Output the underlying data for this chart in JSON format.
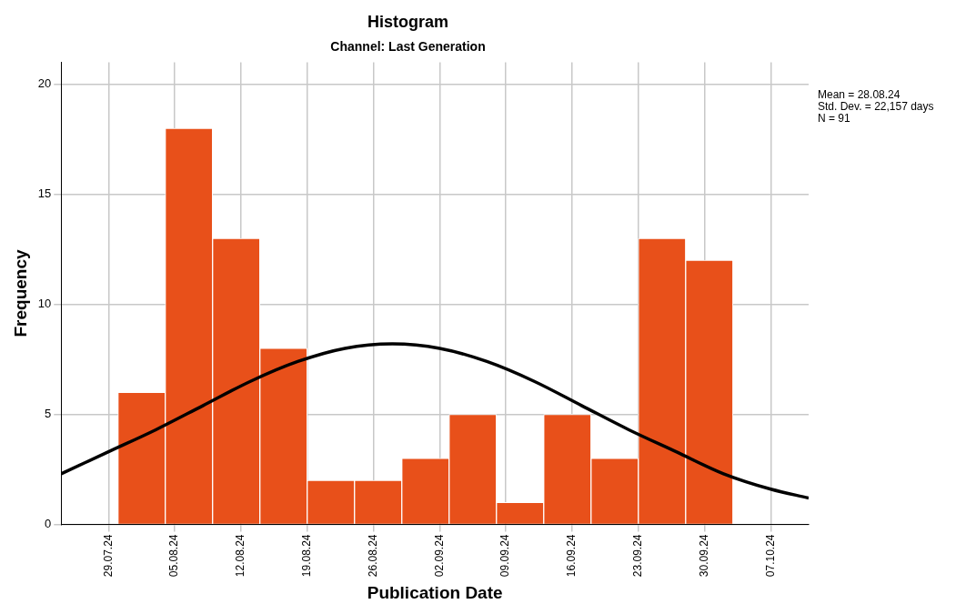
{
  "chart_data": {
    "type": "histogram",
    "title": "Histogram",
    "subtitle": "Channel: Last Generation",
    "xlabel": "Publication Date",
    "ylabel": "Frequency",
    "bins": [
      "--07-30",
      "--08-04",
      "--08-09",
      "--08-14",
      "--08-19",
      "--08-24",
      "--08-29",
      "--09-03",
      "--09-08",
      "--09-13",
      "--09-18",
      "--09-23",
      "--09-28",
      "--10-03"
    ],
    "values": [
      6,
      18,
      13,
      8,
      2,
      2,
      3,
      5,
      1,
      5,
      3,
      13,
      12
    ],
    "color": "#e8501a",
    "xlim": [
      "--07-24",
      "--10-11"
    ],
    "xticks": [
      {
        "value": "--07-29",
        "label": "29.07.24"
      },
      {
        "value": "--08-05",
        "label": "05.08.24"
      },
      {
        "value": "--08-12",
        "label": "12.08.24"
      },
      {
        "value": "--08-19",
        "label": "19.08.24"
      },
      {
        "value": "--08-26",
        "label": "26.08.24"
      },
      {
        "value": "--09-02",
        "label": "02.09.24"
      },
      {
        "value": "--09-09",
        "label": "09.09.24"
      },
      {
        "value": "--09-16",
        "label": "16.09.24"
      },
      {
        "value": "--09-23",
        "label": "23.09.24"
      },
      {
        "value": "--09-30",
        "label": "30.09.24"
      },
      {
        "value": "--10-07",
        "label": "07.10.24"
      }
    ],
    "ylim": [
      0,
      21
    ],
    "yticks": [
      0,
      5,
      10,
      15,
      20
    ],
    "grid": true,
    "annotations": [
      "Mean = 28.08.24",
      "Std. Dev. = 22,157 days",
      "N = 91"
    ],
    "series": [
      {
        "type": "line",
        "color": "#000000",
        "x": [
          "--07-24",
          "--07-29",
          "--08-03",
          "--08-08",
          "--08-13",
          "--08-18",
          "--08-23",
          "--08-28",
          "--09-02",
          "--09-07",
          "--09-12",
          "--09-17",
          "--09-22",
          "--09-27",
          "--10-02",
          "--10-07",
          "--10-11"
        ],
        "values": [
          2.3,
          3.3,
          4.3,
          5.4,
          6.5,
          7.4,
          8.0,
          8.2,
          8.0,
          7.4,
          6.5,
          5.4,
          4.3,
          3.3,
          2.3,
          1.6,
          1.2
        ]
      }
    ]
  }
}
